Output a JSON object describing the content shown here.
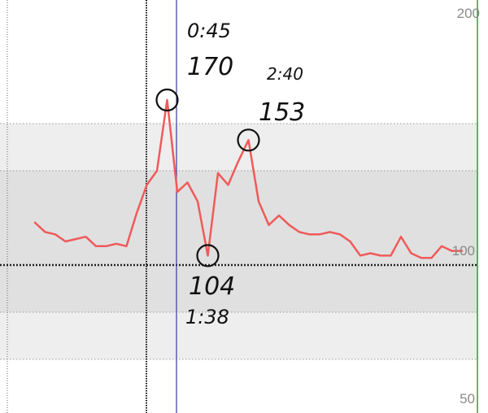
{
  "chart_data": {
    "type": "line",
    "title": "",
    "xlabel": "",
    "ylabel": "",
    "y_axis_position": "right",
    "y_ticks": [
      "200",
      "100",
      "50"
    ],
    "bands": [
      {
        "from": 60,
        "to": 80,
        "color": "#eeeeee"
      },
      {
        "from": 80,
        "to": 100,
        "color": "#e0e0e0"
      },
      {
        "from": 100,
        "to": 140,
        "color": "#e0e0e0"
      },
      {
        "from": 140,
        "to": 160,
        "color": "#eeeeee"
      }
    ],
    "series": [
      {
        "color": "#f05a5a",
        "values": [
          118,
          114,
          113,
          110,
          111,
          112,
          108,
          108,
          109,
          108,
          122,
          134,
          140,
          170,
          131,
          135,
          127,
          104,
          139,
          134,
          144,
          153,
          127,
          117,
          121,
          117,
          114,
          113,
          113,
          114,
          113,
          110,
          104,
          105,
          104,
          104,
          112,
          105,
          103,
          103,
          108,
          106,
          106
        ]
      }
    ],
    "annotations": [
      {
        "time": "0:45",
        "value": "170"
      },
      {
        "time": "2:40",
        "value": "153"
      },
      {
        "value": "104",
        "time": "1:38"
      }
    ],
    "colors": {
      "line": "#f05a5a",
      "cursor": "#3a3a9a",
      "grid": "#9a9a9a",
      "midline": "#222222",
      "right_edge": "#2ea12e"
    }
  }
}
